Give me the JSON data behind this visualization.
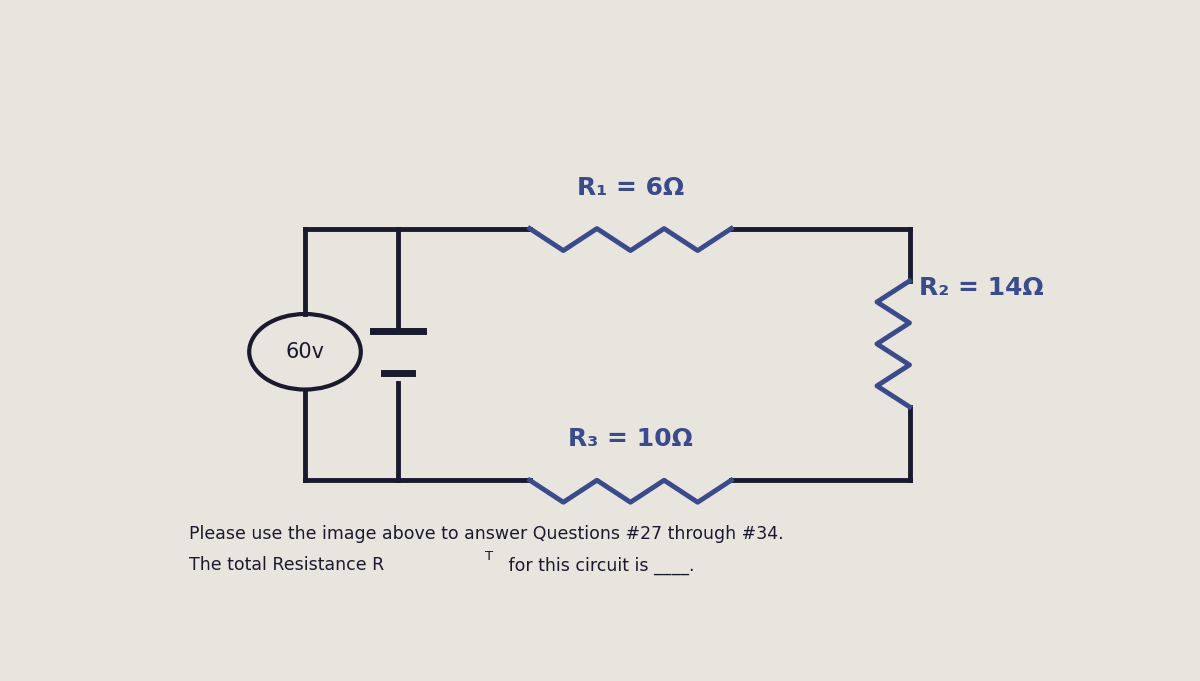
{
  "bg_color": "#e8e4de",
  "circuit_color": "#1a1a2e",
  "resistor_color": "#3a4a8a",
  "text_color": "#1a1a2e",
  "label_color": "#3a4a8a",
  "voltage_label": "60v",
  "R1_label": "R₁ = 6Ω",
  "R2_label": "R₂ = 14Ω",
  "R3_label": "R₃ = 10Ω",
  "bottom_text1": "Please use the image above to answer Questions #27 through #34.",
  "bottom_text2a": "The total Resistance R",
  "bottom_text2b": "T",
  "bottom_text2c": " for this circuit is ____.",
  "figsize": [
    12.0,
    6.81
  ],
  "dpi": 100
}
